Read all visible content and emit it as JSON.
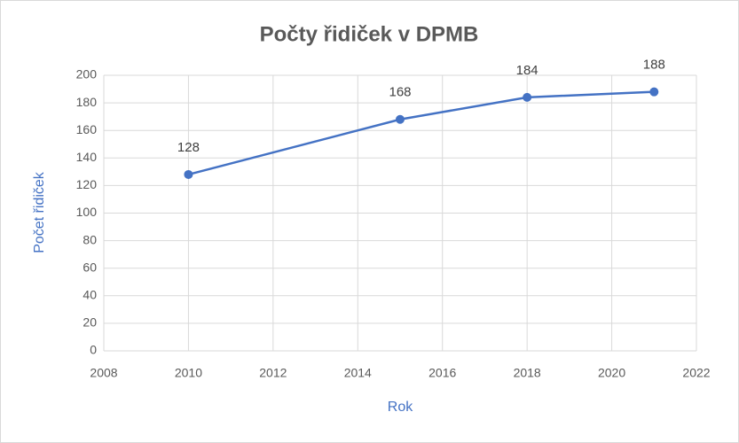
{
  "chart_data": {
    "type": "line",
    "title": "Počty řidiček v DPMB",
    "x_label": "Rok",
    "y_label": "Počet řidiček",
    "x": [
      2010,
      2015,
      2018,
      2021
    ],
    "series": [
      {
        "name": "Počet řidiček",
        "color": "#4472c4",
        "values": [
          128,
          168,
          184,
          188
        ]
      }
    ],
    "xlim": [
      2008,
      2022
    ],
    "xticks": [
      2008,
      2010,
      2012,
      2014,
      2016,
      2018,
      2020,
      2022
    ],
    "ylim": [
      0,
      200
    ],
    "yticks": [
      0,
      20,
      40,
      60,
      80,
      100,
      120,
      140,
      160,
      180,
      200
    ],
    "grid": true,
    "data_labels": true
  }
}
